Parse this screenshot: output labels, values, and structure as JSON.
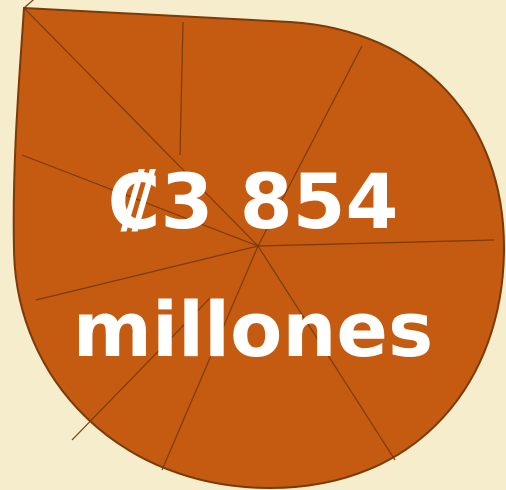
{
  "graphic": {
    "amount_line": "₡3 854",
    "unit_line": "millones",
    "colors": {
      "background": "#F5EDCB",
      "leaf_fill": "#C55A11",
      "leaf_stroke": "#7A3A0A",
      "vein": "#7A3A0A",
      "text": "#FFFFFF"
    }
  }
}
